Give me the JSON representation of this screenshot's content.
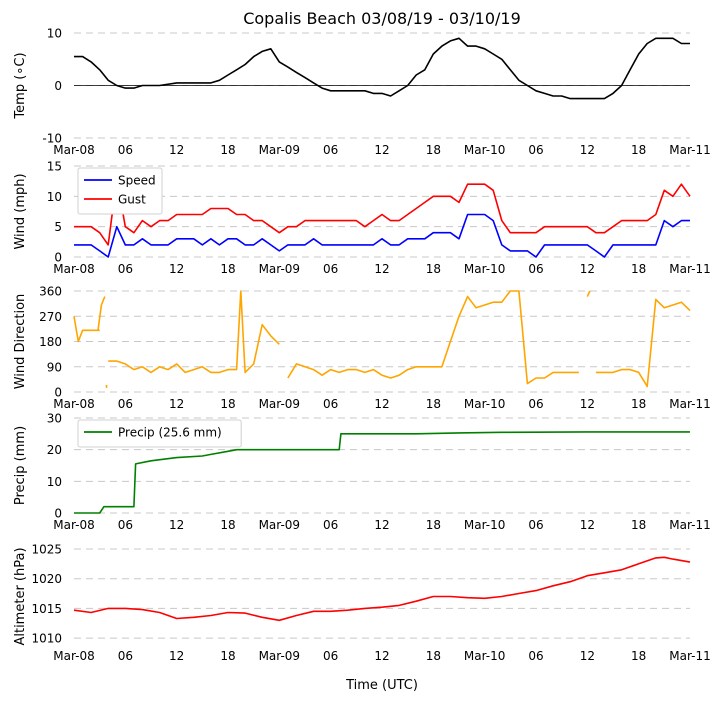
{
  "title": "Copalis Beach 03/08/19 - 03/10/19",
  "xlabel": "Time (UTC)",
  "xaxis": {
    "range": [
      0,
      72
    ],
    "ticks": [
      0,
      6,
      12,
      18,
      24,
      30,
      36,
      42,
      48,
      54,
      60,
      66,
      72
    ],
    "tick_labels": [
      "Mar-08",
      "06",
      "12",
      "18",
      "Mar-09",
      "06",
      "12",
      "18",
      "Mar-10",
      "06",
      "12",
      "18",
      "Mar-11"
    ]
  },
  "chart_data": [
    {
      "type": "line",
      "ylabel": "Temp (∘C)",
      "ylim": [
        -10,
        10
      ],
      "yticks": [
        10,
        0,
        -10
      ],
      "zero_line": true,
      "legend": null,
      "series": [
        {
          "name": "Temp",
          "color": "#000000",
          "x": [
            0,
            1,
            2,
            3,
            4,
            5,
            6,
            7,
            8,
            9,
            10,
            12,
            14,
            16,
            17,
            18,
            19,
            20,
            21,
            22,
            23,
            24,
            25,
            26,
            27,
            28,
            29,
            30,
            31,
            32,
            33,
            34,
            35,
            36,
            37,
            38,
            39,
            40,
            41,
            42,
            43,
            44,
            45,
            46,
            47,
            48,
            49,
            50,
            51,
            52,
            53,
            54,
            55,
            56,
            57,
            58,
            59,
            60,
            61,
            62,
            63,
            64,
            65,
            66,
            67,
            68,
            69,
            70,
            71,
            72
          ],
          "y": [
            5.5,
            5.5,
            4.5,
            3.0,
            1.0,
            0,
            -0.5,
            -0.5,
            0,
            0,
            0,
            0.5,
            0.5,
            0.5,
            1.0,
            2.0,
            3.0,
            4.0,
            5.5,
            6.5,
            7.0,
            4.5,
            3.5,
            2.5,
            1.5,
            0.5,
            -0.5,
            -1.0,
            -1.0,
            -1.0,
            -1.0,
            -1.0,
            -1.5,
            -1.5,
            -2.0,
            -1.0,
            0,
            2.0,
            3.0,
            6.0,
            7.5,
            8.5,
            9.0,
            7.5,
            7.5,
            7.0,
            6.0,
            5.0,
            3.0,
            1.0,
            0,
            -1.0,
            -1.5,
            -2.0,
            -2.0,
            -2.5,
            -2.5,
            -2.5,
            -2.5,
            -2.5,
            -1.5,
            0,
            3.0,
            6.0,
            8.0,
            9.0,
            9.0,
            9.0,
            8.0,
            8.0
          ]
        }
      ]
    },
    {
      "type": "line",
      "ylabel": "Wind (mph)",
      "ylim": [
        0,
        15
      ],
      "yticks": [
        15,
        10,
        5,
        0
      ],
      "zero_line": false,
      "legend": {
        "placement": "top-left",
        "entries": [
          "Speed",
          "Gust"
        ]
      },
      "series": [
        {
          "name": "Speed",
          "color": "#0000ff",
          "x": [
            0,
            1,
            2,
            3,
            4,
            5,
            6,
            7,
            8,
            9,
            10,
            11,
            12,
            13,
            14,
            15,
            16,
            17,
            18,
            19,
            20,
            21,
            22,
            23,
            24,
            25,
            26,
            27,
            28,
            29,
            30,
            31,
            32,
            33,
            34,
            35,
            36,
            37,
            38,
            39,
            40,
            41,
            42,
            43,
            44,
            45,
            46,
            47,
            48,
            49,
            50,
            51,
            52,
            53,
            54,
            55,
            56,
            57,
            58,
            59,
            60,
            61,
            62,
            63,
            64,
            65,
            66,
            67,
            68,
            69,
            70,
            71,
            72
          ],
          "y": [
            2,
            2,
            2,
            1,
            0,
            5,
            2,
            2,
            3,
            2,
            2,
            2,
            3,
            3,
            3,
            2,
            3,
            2,
            3,
            3,
            2,
            2,
            3,
            2,
            1,
            2,
            2,
            2,
            3,
            2,
            2,
            2,
            2,
            2,
            2,
            2,
            3,
            2,
            2,
            3,
            3,
            3,
            4,
            4,
            4,
            3,
            7,
            7,
            7,
            6,
            2,
            1,
            1,
            1,
            0,
            2,
            2,
            2,
            2,
            2,
            2,
            1,
            0,
            2,
            2,
            2,
            2,
            2,
            2,
            6,
            5,
            6,
            6
          ]
        },
        {
          "name": "Gust",
          "color": "#ff0000",
          "x": [
            0,
            1,
            2,
            3,
            4,
            5,
            6,
            7,
            8,
            9,
            10,
            11,
            12,
            13,
            14,
            15,
            16,
            17,
            18,
            19,
            20,
            21,
            22,
            23,
            24,
            25,
            26,
            27,
            28,
            29,
            30,
            31,
            32,
            33,
            34,
            35,
            36,
            37,
            38,
            39,
            40,
            41,
            42,
            43,
            44,
            45,
            46,
            47,
            48,
            49,
            50,
            51,
            52,
            53,
            54,
            55,
            56,
            57,
            58,
            59,
            60,
            61,
            62,
            63,
            64,
            65,
            66,
            67,
            68,
            69,
            70,
            71,
            72
          ],
          "y": [
            5,
            5,
            5,
            4,
            2,
            13,
            5,
            4,
            6,
            5,
            6,
            6,
            7,
            7,
            7,
            7,
            8,
            8,
            8,
            7,
            7,
            6,
            6,
            5,
            4,
            5,
            5,
            6,
            6,
            6,
            6,
            6,
            6,
            6,
            5,
            6,
            7,
            6,
            6,
            7,
            8,
            9,
            10,
            10,
            10,
            9,
            12,
            12,
            12,
            11,
            6,
            4,
            4,
            4,
            4,
            5,
            5,
            5,
            5,
            5,
            5,
            4,
            4,
            5,
            6,
            6,
            6,
            6,
            7,
            11,
            10,
            12,
            10
          ]
        }
      ]
    },
    {
      "type": "line",
      "ylabel": "Wind Direction",
      "ylim": [
        0,
        360
      ],
      "yticks": [
        360,
        270,
        180,
        90,
        0
      ],
      "zero_line": false,
      "legend": null,
      "series": [
        {
          "name": "Direction",
          "color": "#ffa500",
          "segments": [
            {
              "x": [
                0,
                0.5,
                1,
                2,
                3
              ],
              "y": [
                270,
                180,
                220,
                220,
                220
              ]
            },
            {
              "x": [
                2.8,
                3.2,
                3.6
              ],
              "y": [
                220,
                310,
                340
              ]
            },
            {
              "x": [
                3.8
              ],
              "y": [
                20
              ]
            },
            {
              "x": [
                4,
                5,
                6,
                7,
                8,
                9,
                10,
                11,
                12,
                13,
                14,
                15,
                16,
                17,
                18,
                19,
                19.5,
                20,
                21,
                22,
                23,
                24
              ],
              "y": [
                110,
                110,
                100,
                80,
                90,
                70,
                90,
                80,
                100,
                70,
                80,
                90,
                70,
                70,
                80,
                80,
                360,
                70,
                100,
                240,
                200,
                170
              ]
            },
            {
              "x": [
                25,
                26,
                27,
                28,
                29,
                30,
                31,
                32,
                33,
                34,
                35,
                36,
                37,
                38,
                39,
                40,
                41,
                42,
                43,
                44,
                45,
                46,
                47,
                48,
                49,
                50,
                51,
                52,
                53,
                54,
                55,
                56,
                57,
                58,
                59
              ],
              "y": [
                50,
                100,
                90,
                80,
                60,
                80,
                70,
                80,
                80,
                70,
                80,
                60,
                50,
                60,
                80,
                90,
                90,
                90,
                90,
                180,
                270,
                340,
                300,
                310,
                320,
                320,
                360,
                360,
                30,
                50,
                50,
                70,
                70,
                70,
                70
              ]
            },
            {
              "x": [
                60,
                60.3
              ],
              "y": [
                340,
                360
              ]
            },
            {
              "x": [
                61,
                62,
                63,
                64,
                65,
                66,
                67,
                68,
                69,
                70,
                71,
                72
              ],
              "y": [
                70,
                70,
                70,
                80,
                80,
                70,
                20,
                330,
                300,
                310,
                320,
                290
              ]
            }
          ]
        }
      ]
    },
    {
      "type": "line",
      "ylabel": "Precip (mm)",
      "ylim": [
        0,
        30
      ],
      "yticks": [
        30,
        20,
        10,
        0
      ],
      "zero_line": false,
      "legend": {
        "placement": "top-left",
        "entries": [
          "Precip (25.6 mm)"
        ]
      },
      "series": [
        {
          "name": "Precip (25.6 mm)",
          "color": "#008000",
          "x": [
            0,
            3,
            3.5,
            7,
            7.2,
            9,
            12,
            15,
            16,
            18,
            19,
            20,
            30,
            31,
            31.2,
            40,
            45,
            50,
            60,
            72
          ],
          "y": [
            0,
            0,
            2,
            2,
            15.5,
            16.5,
            17.5,
            18,
            18.5,
            19.5,
            20,
            20,
            20,
            20,
            25,
            25,
            25.3,
            25.5,
            25.6,
            25.6
          ]
        }
      ]
    },
    {
      "type": "line",
      "ylabel": "Altimeter (hPa)",
      "ylim": [
        1009,
        1025
      ],
      "yticks": [
        1025,
        1020,
        1015,
        1010
      ],
      "zero_line": false,
      "legend": null,
      "series": [
        {
          "name": "Altimeter",
          "color": "#ff0000",
          "x": [
            0,
            2,
            4,
            6,
            8,
            10,
            12,
            14,
            16,
            18,
            20,
            22,
            24,
            26,
            28,
            30,
            32,
            34,
            36,
            38,
            40,
            42,
            44,
            46,
            48,
            50,
            52,
            54,
            56,
            58,
            60,
            62,
            64,
            66,
            68,
            69,
            70,
            72
          ],
          "y": [
            1014.7,
            1014.3,
            1015,
            1015,
            1014.8,
            1014.3,
            1013.3,
            1013.5,
            1013.8,
            1014.3,
            1014.2,
            1013.5,
            1013,
            1013.8,
            1014.5,
            1014.5,
            1014.7,
            1015,
            1015.2,
            1015.5,
            1016.2,
            1017,
            1017,
            1016.8,
            1016.7,
            1017,
            1017.5,
            1018,
            1018.8,
            1019.5,
            1020.5,
            1021,
            1021.5,
            1022.5,
            1023.5,
            1023.6,
            1023.3,
            1022.8
          ]
        }
      ]
    }
  ]
}
